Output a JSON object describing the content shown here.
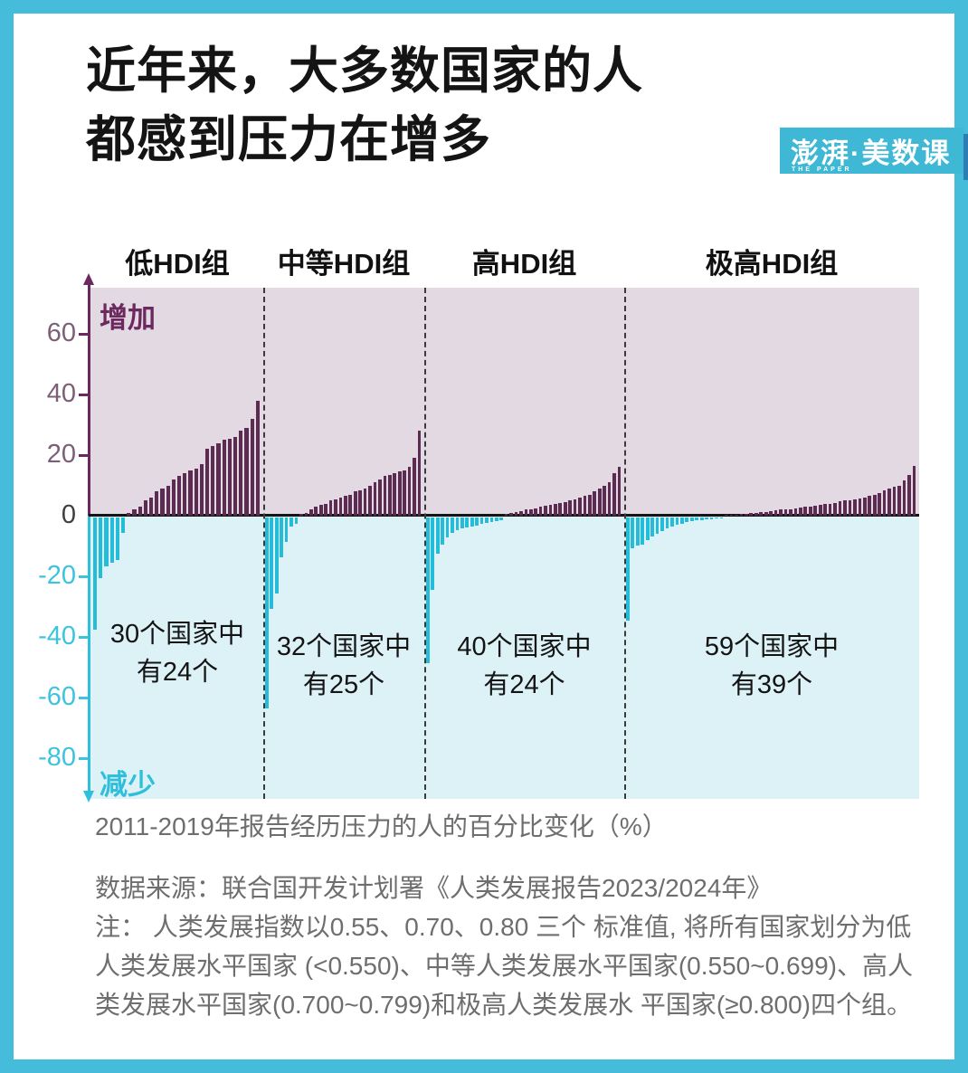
{
  "frame": {
    "border_color": "#45BCD9"
  },
  "header": {
    "title_line1": "近年来，大多数国家的人",
    "title_line2": "都感到压力在增多"
  },
  "logo": {
    "text": "澎湃·美数课",
    "subtext": "THE PAPER",
    "bg_color": "#3FB8D6",
    "accent_color": "#2E7EB5"
  },
  "chart_data": {
    "type": "bar",
    "title": "",
    "xlabel": "2011-2019年报告经历压力的人的百分比变化（%）",
    "ylabel": "",
    "ylim": [
      -93,
      75
    ],
    "yticks": [
      60,
      40,
      20,
      0,
      -20,
      -40,
      -60,
      -80
    ],
    "grid": false,
    "legend": "none",
    "increase_label": "增加",
    "decrease_label": "减少",
    "colors": {
      "positive_bar": "#5C2B52",
      "negative_bar": "#25BCD9",
      "positive_bg": "#E3D9E2",
      "negative_bg": "#DCF2F7",
      "positive_axis": "#6B2960",
      "negative_axis": "#2FBEDC"
    },
    "groups": [
      {
        "label": "低HDI组",
        "total_countries": 30,
        "increased_countries": 24,
        "annotation": [
          "30个国家中",
          "有24个"
        ],
        "values": [
          -37,
          -20,
          -16,
          -15,
          -14,
          -5,
          1,
          2,
          3,
          5,
          6,
          8,
          9,
          10,
          12,
          13,
          14,
          15,
          15.5,
          17,
          22,
          23,
          24,
          25,
          25.5,
          26,
          28,
          29,
          32,
          38
        ]
      },
      {
        "label": "中等HDI组",
        "total_countries": 32,
        "increased_countries": 25,
        "annotation": [
          "32个国家中",
          "有25个"
        ],
        "values": [
          -63,
          -30,
          -25,
          -13,
          -8,
          -3,
          -2,
          0.5,
          1,
          2,
          3,
          3.5,
          4,
          5,
          5.5,
          6,
          6.5,
          7,
          8,
          8.5,
          9,
          10,
          11,
          12,
          13,
          13.5,
          14,
          14.5,
          15,
          16,
          19,
          28
        ]
      },
      {
        "label": "高HDI组",
        "total_countries": 40,
        "increased_countries": 24,
        "annotation": [
          "40个国家中",
          "有24个"
        ],
        "values": [
          -48,
          -24,
          -12,
          -9,
          -6.5,
          -5,
          -4.2,
          -3.6,
          -3.3,
          -3,
          -2.7,
          -2.1,
          -1.8,
          -1.5,
          -1.2,
          -0.9,
          0.5,
          1,
          1.2,
          1.5,
          2,
          2.2,
          2.5,
          3,
          3.2,
          3.5,
          4,
          4.2,
          4.5,
          5,
          5.5,
          6,
          6.5,
          7,
          8,
          9,
          10,
          11,
          14,
          16
        ]
      },
      {
        "label": "极高HDI组",
        "total_countries": 59,
        "increased_countries": 39,
        "annotation": [
          "59个国家中",
          "有39个"
        ],
        "values": [
          -34,
          -10,
          -9.4,
          -9,
          -7.5,
          -6.4,
          -5.4,
          -4.5,
          -3.7,
          -3,
          -2.4,
          -2,
          -1.5,
          -1.2,
          -1,
          -0.8,
          -0.6,
          -0.5,
          -0.4,
          -0.3,
          0.2,
          0.3,
          0.4,
          0.5,
          0.6,
          0.8,
          1,
          1.1,
          1.2,
          1.5,
          1.8,
          2,
          2.1,
          2.2,
          2.5,
          2.8,
          3,
          3.1,
          3.2,
          3.5,
          3.8,
          4,
          4.2,
          4.8,
          5,
          5.2,
          5.5,
          5.8,
          6,
          6.5,
          7,
          7.5,
          8.5,
          9,
          9.5,
          10,
          11.5,
          13.5,
          16.5
        ]
      }
    ]
  },
  "footer": {
    "source_line": "数据来源：联合国开发计划署《人类发展报告2023/2024年》",
    "note_lines": [
      "注： 人类发展指数以0.55、0.70、0.80 三个 标准值, 将所有国家划分为低",
      "人类发展水平国家 (<0.550)、中等人类发展水平国家(0.550~0.699)、高人",
      "类发展水平国家(0.700~0.799)和极高人类发展水 平国家(≥0.800)四个组。"
    ]
  }
}
